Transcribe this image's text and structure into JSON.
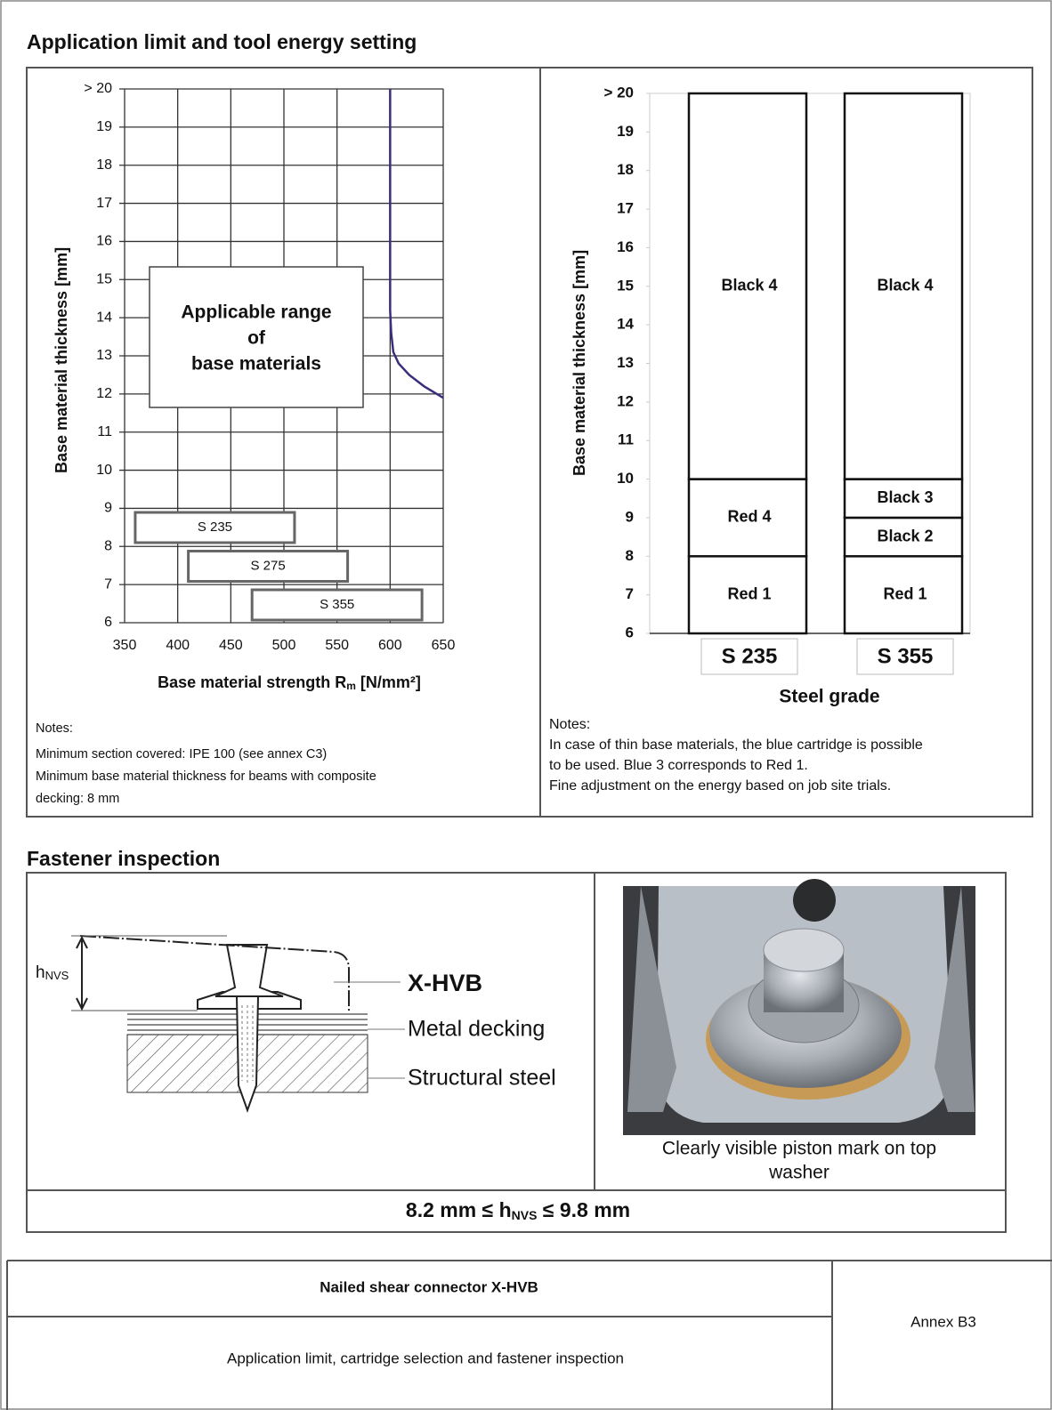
{
  "header": {
    "title": "Application limit and tool energy setting"
  },
  "chart_data": [
    {
      "type": "line",
      "y_label": "Base material thickness [mm]",
      "x_label": [
        "Base material strength R",
        "m",
        " [N/mm²]"
      ],
      "xlim": [
        350,
        650
      ],
      "xticks": [
        350,
        400,
        450,
        500,
        550,
        600,
        650
      ],
      "ylim": [
        6,
        20
      ],
      "yticks": [
        6,
        7,
        8,
        9,
        10,
        11,
        12,
        13,
        14,
        15,
        16,
        17,
        18,
        19,
        {
          "value": 20,
          "label": "> 20"
        }
      ],
      "grid": true,
      "series": [
        {
          "color": "#3b2d7c",
          "x": [
            600,
            600,
            601,
            603,
            608,
            618,
            632,
            650
          ],
          "values": [
            20,
            14.2,
            13.6,
            13.1,
            12.8,
            12.5,
            12.2,
            11.9
          ]
        }
      ],
      "annotation": [
        "Applicable range",
        "of",
        "base materials"
      ],
      "ranges": [
        {
          "label": "S 235",
          "x": [
            360,
            510
          ]
        },
        {
          "label": "S 275",
          "x": [
            410,
            560
          ]
        },
        {
          "label": "S 355",
          "x": [
            470,
            630
          ]
        }
      ]
    },
    {
      "type": "range_bar",
      "y_label": "Base material thickness [mm]",
      "x_label": "Steel grade",
      "categories": [
        "S 235",
        "S 355"
      ],
      "ylim": [
        6,
        20
      ],
      "yticks": [
        6,
        7,
        8,
        9,
        10,
        11,
        12,
        13,
        14,
        15,
        16,
        17,
        18,
        19,
        {
          "value": 20,
          "label": "> 20"
        }
      ],
      "segments": [
        [
          {
            "label": "Red 1",
            "range": [
              6,
              8
            ]
          },
          {
            "label": "Red 4",
            "range": [
              8,
              10
            ]
          },
          {
            "label": "Black 4",
            "range": [
              10,
              20
            ]
          }
        ],
        [
          {
            "label": "Red 1",
            "range": [
              6,
              8
            ]
          },
          {
            "label": "Black 2",
            "range": [
              8,
              9
            ]
          },
          {
            "label": "Black 3",
            "range": [
              9,
              10
            ]
          },
          {
            "label": "Black 4",
            "range": [
              10,
              20
            ]
          }
        ]
      ]
    }
  ],
  "notes_left": [
    "Notes:",
    "Minimum section covered: IPE 100 (see annex C3)",
    "Minimum base material thickness for beams with composite",
    "decking: 8 mm"
  ],
  "notes_right": [
    "Notes:",
    "In case of thin base materials, the blue cartridge is possible",
    "to be used. Blue 3 corresponds to Red 1.",
    "Fine adjustment on the energy based on job site trials."
  ],
  "inspection": {
    "title": "Fastener inspection",
    "h_label": [
      "h",
      "NVS"
    ],
    "labels": [
      "X-HVB",
      "Metal decking",
      "Structural steel"
    ],
    "caption": [
      "Clearly visible piston mark on top",
      "washer"
    ],
    "formula": [
      "8.2 mm ≤ h",
      "NVS",
      " ≤ 9.8 mm"
    ]
  },
  "footer": {
    "product": "Nailed shear connector X-HVB",
    "description": "Application limit, cartridge selection and fastener inspection",
    "annex": "Annex B3"
  }
}
